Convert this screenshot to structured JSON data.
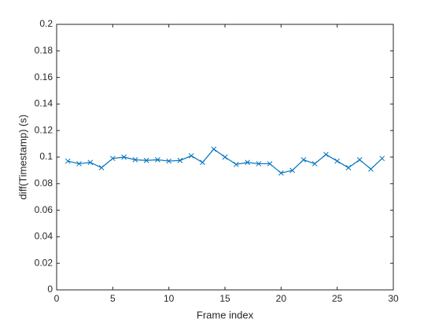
{
  "chart_data": {
    "type": "line",
    "xlabel": "Frame index",
    "ylabel": "diff(Timestamp) (s)",
    "x": [
      1,
      2,
      3,
      4,
      5,
      6,
      7,
      8,
      9,
      10,
      11,
      12,
      13,
      14,
      15,
      16,
      17,
      18,
      19,
      20,
      21,
      22,
      23,
      24,
      25,
      26,
      27,
      28,
      29
    ],
    "series": [
      {
        "color": "#0072bd",
        "marker": "x",
        "values": [
          0.097,
          0.095,
          0.096,
          0.092,
          0.099,
          0.1,
          0.098,
          0.0975,
          0.098,
          0.097,
          0.0975,
          0.101,
          0.096,
          0.106,
          0.1,
          0.0945,
          0.096,
          0.095,
          0.095,
          0.088,
          0.09,
          0.098,
          0.095,
          0.102,
          0.097,
          0.092,
          0.098,
          0.091,
          0.099
        ]
      }
    ],
    "xlim": [
      0,
      30
    ],
    "xticks": [
      0,
      5,
      10,
      15,
      20,
      25,
      30
    ],
    "ylim": [
      0,
      0.2
    ],
    "yticks": [
      0,
      0.02,
      0.04,
      0.06,
      0.08,
      0.1,
      0.12,
      0.14,
      0.16,
      0.18,
      0.2
    ],
    "grid": false
  }
}
